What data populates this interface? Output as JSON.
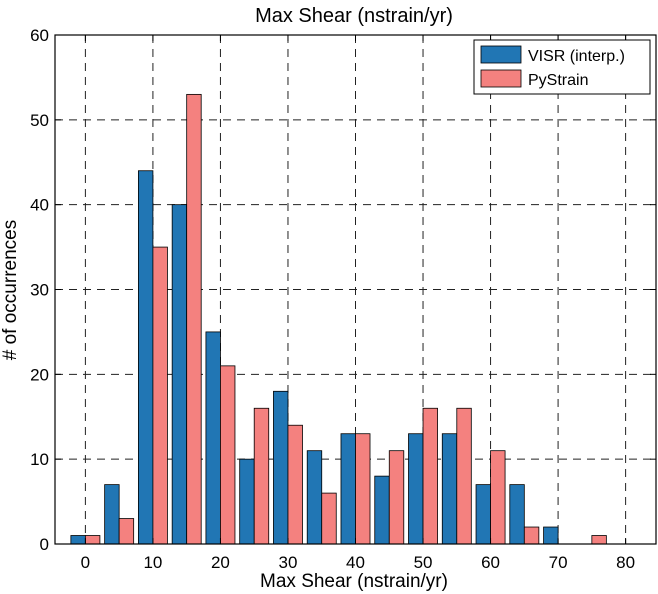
{
  "chart_data": {
    "type": "bar",
    "title": "Max Shear (nstrain/yr)",
    "xlabel": "Max Shear (nstrain/yr)",
    "ylabel": "# of occurrences",
    "xlim": [
      -4.5,
      84.5
    ],
    "ylim": [
      0,
      60
    ],
    "xticks": [
      0,
      10,
      20,
      30,
      40,
      50,
      60,
      70,
      80
    ],
    "yticks": [
      0,
      10,
      20,
      30,
      40,
      50,
      60
    ],
    "bin_centers": [
      0,
      5,
      10,
      15,
      20,
      25,
      30,
      35,
      40,
      45,
      50,
      55,
      60,
      65,
      70,
      75,
      80
    ],
    "grid": true,
    "legend_position": "top-right",
    "series": [
      {
        "name": "VISR (interp.)",
        "color": "#2176b4",
        "values": [
          1,
          7,
          44,
          40,
          25,
          10,
          18,
          11,
          13,
          8,
          13,
          13,
          7,
          7,
          2,
          0,
          0
        ]
      },
      {
        "name": "PyStrain",
        "color": "#f4817f",
        "values": [
          1,
          3,
          35,
          53,
          21,
          16,
          14,
          6,
          13,
          11,
          16,
          16,
          11,
          2,
          0,
          1,
          0
        ]
      }
    ]
  }
}
